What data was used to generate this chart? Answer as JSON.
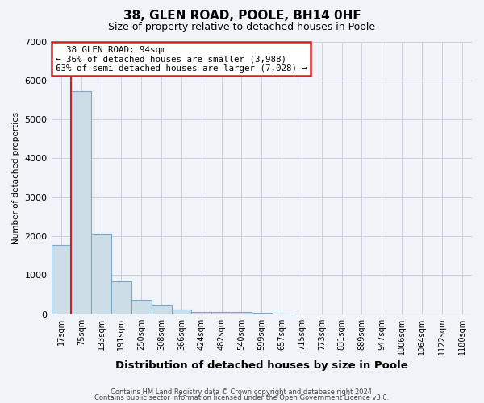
{
  "title": "38, GLEN ROAD, POOLE, BH14 0HF",
  "subtitle": "Size of property relative to detached houses in Poole",
  "xlabel": "Distribution of detached houses by size in Poole",
  "ylabel": "Number of detached properties",
  "bar_labels": [
    "17sqm",
    "75sqm",
    "133sqm",
    "191sqm",
    "250sqm",
    "308sqm",
    "366sqm",
    "424sqm",
    "482sqm",
    "540sqm",
    "599sqm",
    "657sqm",
    "715sqm",
    "773sqm",
    "831sqm",
    "889sqm",
    "947sqm",
    "1006sqm",
    "1064sqm",
    "1122sqm",
    "1180sqm"
  ],
  "bar_values": [
    1780,
    5730,
    2060,
    840,
    370,
    230,
    110,
    50,
    50,
    50,
    30,
    20,
    0,
    0,
    0,
    0,
    0,
    0,
    0,
    0,
    0
  ],
  "bar_color": "#ccdde8",
  "bar_edge_color": "#7aaac8",
  "ylim": [
    0,
    7000
  ],
  "yticks": [
    0,
    1000,
    2000,
    3000,
    4000,
    5000,
    6000,
    7000
  ],
  "vline_x_index": 1,
  "annotation_title": "38 GLEN ROAD: 94sqm",
  "annotation_line1": "← 36% of detached houses are smaller (3,988)",
  "annotation_line2": "63% of semi-detached houses are larger (7,028) →",
  "annotation_box_color": "#ffffff",
  "annotation_box_edge_color": "#cc2222",
  "vline_color": "#cc2222",
  "footer1": "Contains HM Land Registry data © Crown copyright and database right 2024.",
  "footer2": "Contains public sector information licensed under the Open Government Licence v3.0.",
  "fig_bg_color": "#f0f4f8",
  "plot_bg_color": "#f0f4f8",
  "grid_color": "#c8d0dc"
}
